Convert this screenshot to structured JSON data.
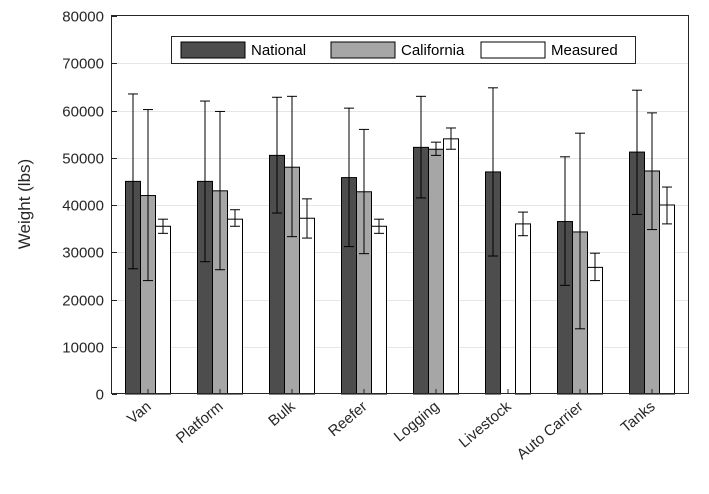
{
  "chart_data": {
    "type": "bar",
    "title": "",
    "xlabel": "",
    "ylabel": "Weight (lbs)",
    "ylim": [
      0,
      80000
    ],
    "yticks": [
      0,
      10000,
      20000,
      30000,
      40000,
      50000,
      60000,
      70000,
      80000
    ],
    "grid": true,
    "legend_position": "top",
    "categories": [
      "Van",
      "Platform",
      "Bulk",
      "Reefer",
      "Logging",
      "Livestock",
      "Auto Carrier",
      "Tanks"
    ],
    "series": [
      {
        "name": "National",
        "color": "#4d4d4d",
        "values": [
          45000,
          45000,
          50500,
          45800,
          52200,
          47000,
          36500,
          51200
        ],
        "error_low": [
          26500,
          28000,
          38300,
          31200,
          41500,
          29200,
          23000,
          38000
        ],
        "error_high": [
          63500,
          62000,
          62800,
          60500,
          63000,
          64800,
          50200,
          64300
        ]
      },
      {
        "name": "California",
        "color": "#a6a6a6",
        "values": [
          42000,
          43000,
          48000,
          42800,
          51800,
          null,
          34300,
          47200
        ],
        "error_low": [
          24000,
          26300,
          33300,
          29700,
          50500,
          null,
          13800,
          34800
        ],
        "error_high": [
          60200,
          59800,
          63000,
          56000,
          53300,
          null,
          55200,
          59500
        ]
      },
      {
        "name": "Measured",
        "color": "#ffffff",
        "values": [
          35500,
          37000,
          37200,
          35500,
          54000,
          36000,
          26800,
          40000
        ],
        "error_low": [
          34000,
          35500,
          33000,
          34000,
          51800,
          33500,
          24000,
          36000
        ],
        "error_high": [
          37000,
          39000,
          41300,
          37000,
          56300,
          38500,
          29800,
          43800
        ]
      }
    ]
  }
}
